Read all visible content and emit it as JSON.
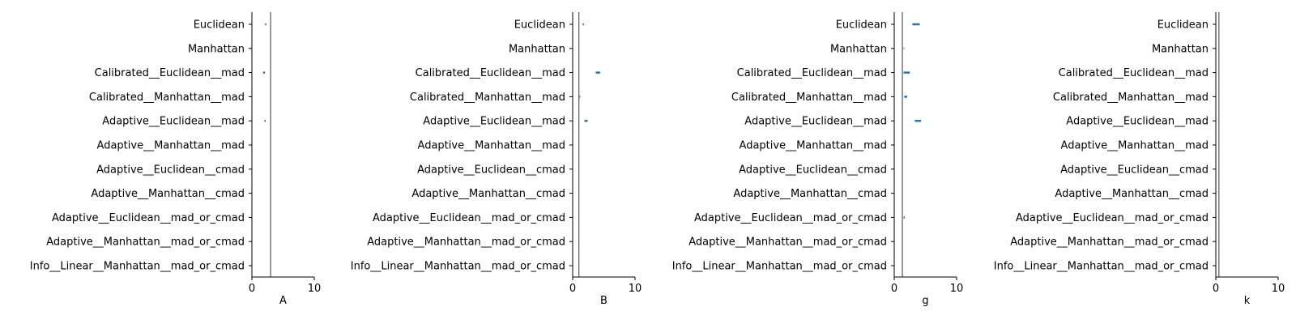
{
  "chart_data": [
    {
      "type": "scatter",
      "xlabel": "A",
      "xlim": [
        0,
        10
      ],
      "xticks": [
        "0",
        "10"
      ],
      "reference_line": 3,
      "categories": [
        "Euclidean",
        "Manhattan",
        "Calibrated__Euclidean__mad",
        "Calibrated__Manhattan__mad",
        "Adaptive__Euclidean__mad",
        "Adaptive__Manhattan__mad",
        "Adaptive__Euclidean__cmad",
        "Adaptive__Manhattan__cmad",
        "Adaptive__Euclidean__mad_or_cmad",
        "Adaptive__Manhattan__mad_or_cmad",
        "Info__Linear__Manhattan__mad_or_cmad"
      ],
      "intervals": [
        {
          "category": "Euclidean",
          "low": 2.1,
          "high": 2.3
        },
        {
          "category": "Calibrated__Euclidean__mad",
          "low": 1.8,
          "high": 2.1
        },
        {
          "category": "Adaptive__Euclidean__mad",
          "low": 2.0,
          "high": 2.2
        }
      ]
    },
    {
      "type": "scatter",
      "xlabel": "B",
      "xlim": [
        0,
        10
      ],
      "xticks": [
        "0",
        "10"
      ],
      "reference_line": 1,
      "categories": [
        "Euclidean",
        "Manhattan",
        "Calibrated__Euclidean__mad",
        "Calibrated__Manhattan__mad",
        "Adaptive__Euclidean__mad",
        "Adaptive__Manhattan__mad",
        "Adaptive__Euclidean__cmad",
        "Adaptive__Manhattan__cmad",
        "Adaptive__Euclidean__mad_or_cmad",
        "Adaptive__Manhattan__mad_or_cmad",
        "Info__Linear__Manhattan__mad_or_cmad"
      ],
      "intervals": [
        {
          "category": "Euclidean",
          "low": 1.6,
          "high": 1.8
        },
        {
          "category": "Calibrated__Euclidean__mad",
          "low": 3.7,
          "high": 4.4
        },
        {
          "category": "Calibrated__Manhattan__mad",
          "low": 1.0,
          "high": 1.2
        },
        {
          "category": "Adaptive__Euclidean__mad",
          "low": 1.9,
          "high": 2.4
        }
      ]
    },
    {
      "type": "scatter",
      "xlabel": "g",
      "xlim": [
        0,
        10
      ],
      "xticks": [
        "0",
        "10"
      ],
      "reference_line": 1.3,
      "categories": [
        "Euclidean",
        "Manhattan",
        "Calibrated__Euclidean__mad",
        "Calibrated__Manhattan__mad",
        "Adaptive__Euclidean__mad",
        "Adaptive__Manhattan__mad",
        "Adaptive__Euclidean__cmad",
        "Adaptive__Manhattan__cmad",
        "Adaptive__Euclidean__mad_or_cmad",
        "Adaptive__Manhattan__mad_or_cmad",
        "Info__Linear__Manhattan__mad_or_cmad"
      ],
      "intervals": [
        {
          "category": "Euclidean",
          "low": 2.9,
          "high": 4.1
        },
        {
          "category": "Manhattan",
          "low": 1.5,
          "high": 1.6
        },
        {
          "category": "Calibrated__Euclidean__mad",
          "low": 1.5,
          "high": 2.5
        },
        {
          "category": "Calibrated__Manhattan__mad",
          "low": 1.6,
          "high": 2.1
        },
        {
          "category": "Adaptive__Euclidean__mad",
          "low": 3.3,
          "high": 4.3
        },
        {
          "category": "Adaptive__Euclidean__mad_or_cmad",
          "low": 1.5,
          "high": 1.7
        }
      ]
    },
    {
      "type": "scatter",
      "xlabel": "k",
      "xlim": [
        0,
        10
      ],
      "xticks": [
        "0",
        "10"
      ],
      "reference_line": 0.5,
      "categories": [
        "Euclidean",
        "Manhattan",
        "Calibrated__Euclidean__mad",
        "Calibrated__Manhattan__mad",
        "Adaptive__Euclidean__mad",
        "Adaptive__Manhattan__mad",
        "Adaptive__Euclidean__cmad",
        "Adaptive__Manhattan__cmad",
        "Adaptive__Euclidean__mad_or_cmad",
        "Adaptive__Manhattan__mad_or_cmad",
        "Info__Linear__Manhattan__mad_or_cmad"
      ],
      "intervals": []
    }
  ],
  "colors": {
    "interval": "#1f77b4",
    "reference_line": "#555555",
    "axis": "#000000"
  }
}
